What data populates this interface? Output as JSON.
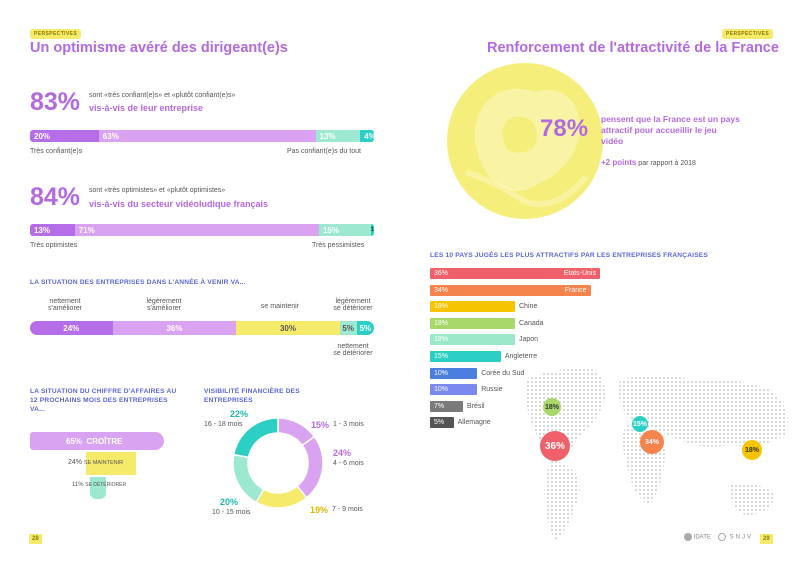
{
  "left": {
    "tag": "PERSPECTIVES",
    "title": "Un optimisme avéré des dirigeant(e)s",
    "q1": {
      "big": "83%",
      "line1": "sont «très confiant(e)s» et «plutôt confiant(e)s»",
      "line2": "vis-à-vis de leur entreprise",
      "segments": [
        {
          "label": "20%",
          "value": 20,
          "color": "#b56ee8"
        },
        {
          "label": "63%",
          "value": 63,
          "color": "#d9a3f2"
        },
        {
          "label": "13%",
          "value": 13,
          "color": "#9de8d0"
        },
        {
          "label": "4%",
          "value": 4,
          "color": "#2bcfc3"
        }
      ],
      "left_label": "Très confiant(e)s",
      "right_label": "Pas confiant(e)s du tout"
    },
    "q2": {
      "big": "84%",
      "line1": "sont «très optimistes» et «plutôt optimistes»",
      "line2": "vis-à-vis du secteur vidéoludique français",
      "segments": [
        {
          "label": "13%",
          "value": 13,
          "color": "#b56ee8"
        },
        {
          "label": "71%",
          "value": 71,
          "color": "#d9a3f2"
        },
        {
          "label": "15%",
          "value": 15,
          "color": "#9de8d0"
        },
        {
          "label": "1%",
          "value": 1,
          "color": "#2bcfc3"
        }
      ],
      "left_label": "Très optimistes",
      "right_label": "Très pessimistes"
    },
    "situation": {
      "heading": "LA SITUATION DES ENTREPRISES DANS L'ANNÉE À VENIR VA...",
      "labels": [
        "nettement\ns'améliorer",
        "légèrement\ns'améliorer",
        "se maintenir",
        "légèrement\nse détériorer",
        "nettement\nse détériorer"
      ],
      "segments": [
        {
          "label": "24%",
          "value": 24,
          "color": "#b56ee8"
        },
        {
          "label": "36%",
          "value": 36,
          "color": "#d9a3f2"
        },
        {
          "label": "30%",
          "value": 30,
          "color": "#f6ea6a"
        },
        {
          "label": "5%",
          "value": 5,
          "color": "#9de8d0"
        },
        {
          "label": "5%",
          "value": 5,
          "color": "#2bcfc3"
        }
      ]
    },
    "ca": {
      "heading": "LA SITUATION DU CHIFFRE D'AFFAIRES AU 12 PROCHAINS MOIS DES ENTREPRISES VA...",
      "items": [
        {
          "pct": "65%",
          "label": "CROÎTRE",
          "color": "#d9a3f2"
        },
        {
          "pct": "24%",
          "label": "SE MAINTENIR",
          "color": "#f6ea6a"
        },
        {
          "pct": "11%",
          "label": "SE DÉTÉRIORER",
          "color": "#9de8d0"
        }
      ]
    },
    "visibilite": {
      "heading": "VISIBILITÉ FINANCIÈRE DES ENTREPRISES",
      "slices": [
        {
          "pct": "15%",
          "label": "1 - 3 mois",
          "value": 15,
          "color": "#d9a3f2",
          "pcolor": "#b36ae0"
        },
        {
          "pct": "24%",
          "label": "4 - 6 mois",
          "value": 24,
          "color": "#d9a3f2",
          "pcolor": "#b36ae0"
        },
        {
          "pct": "19%",
          "label": "7 - 9 mois",
          "value": 19,
          "color": "#f6ea6a",
          "pcolor": "#d8b800"
        },
        {
          "pct": "20%",
          "label": "10 - 15 mois",
          "value": 20,
          "color": "#9de8d0",
          "pcolor": "#1fb8ac"
        },
        {
          "pct": "22%",
          "label": "16 - 18 mois",
          "value": 22,
          "color": "#2bcfc3",
          "pcolor": "#1fb8ac"
        }
      ]
    },
    "page": "28"
  },
  "right": {
    "tag": "PERSPECTIVES",
    "title": "Renforcement de l'attractivité de la France",
    "big": "78%",
    "text": "pensent que la France est un pays attractif pour accueillir le jeu vidéo",
    "plus": "+2 points",
    "plus_tail": "par rapport à 2018",
    "countries_heading": "LES 10 PAYS JUGÉS LES PLUS ATTRACTIFS PAR LES ENTREPRISES FRANÇAISES",
    "countries": [
      {
        "pct": "36%",
        "name": "Etats-Unis",
        "value": 36,
        "color": "#f0606a"
      },
      {
        "pct": "34%",
        "name": "France",
        "value": 34,
        "color": "#f5834c"
      },
      {
        "pct": "18%",
        "name": "Chine",
        "value": 18,
        "color": "#f6c400"
      },
      {
        "pct": "18%",
        "name": "Canada",
        "value": 18,
        "color": "#a8d86a"
      },
      {
        "pct": "18%",
        "name": "Japon",
        "value": 18,
        "color": "#9be8c8"
      },
      {
        "pct": "15%",
        "name": "Angleterre",
        "value": 15,
        "color": "#2bcfc3"
      },
      {
        "pct": "10%",
        "name": "Corée du Sud",
        "value": 10,
        "color": "#4a7fe0"
      },
      {
        "pct": "10%",
        "name": "Russie",
        "value": 10,
        "color": "#7a88f0"
      },
      {
        "pct": "7%",
        "name": "Brésil",
        "value": 7,
        "color": "#7a7a7a"
      },
      {
        "pct": "5%",
        "name": "Allemagne",
        "value": 5,
        "color": "#555555"
      }
    ],
    "map_bubbles": [
      {
        "label": "18%",
        "color": "#a8d86a"
      },
      {
        "label": "36%",
        "color": "#f0606a"
      },
      {
        "label": "15%",
        "color": "#2bcfc3"
      },
      {
        "label": "34%",
        "color": "#f5834c"
      },
      {
        "label": "18%",
        "color": "#f6c400"
      }
    ],
    "logos": [
      "IDATE",
      "SNJV"
    ],
    "page": "29"
  }
}
